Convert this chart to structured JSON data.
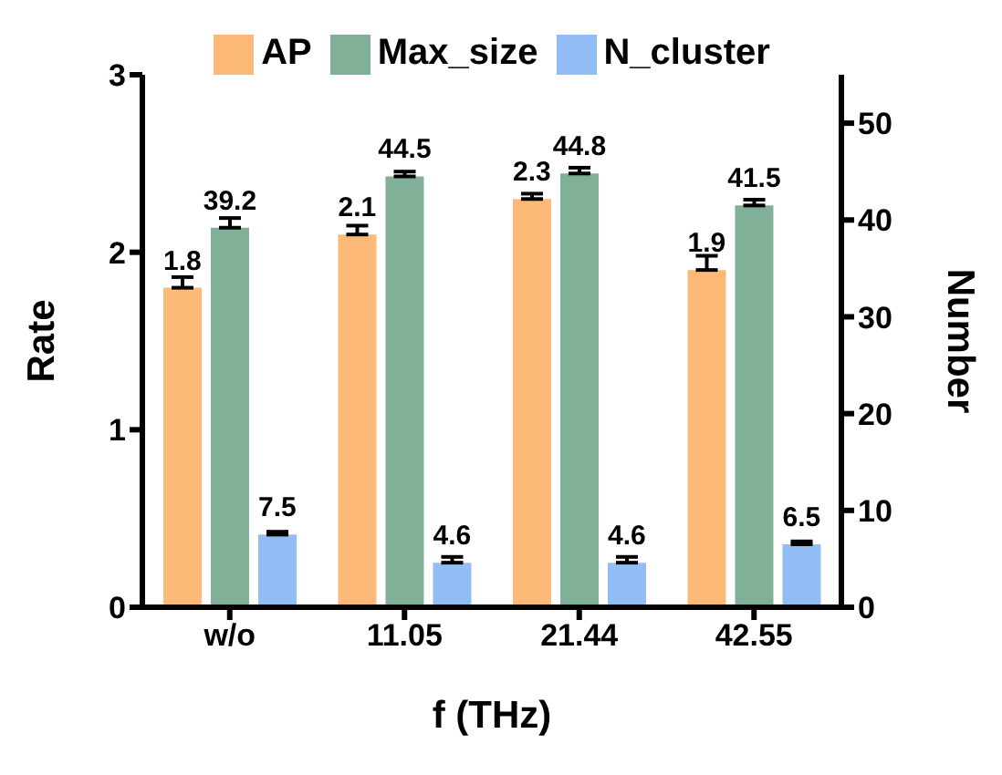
{
  "chart_data": {
    "type": "bar",
    "xlabel": "f (THz)",
    "ylabel": "Rate",
    "y2label": "Number",
    "categories": [
      "w/o",
      "11.05",
      "21.44",
      "42.55"
    ],
    "series": [
      {
        "name": "AP",
        "color": "#fdb978",
        "values": [
          1.8,
          2.1,
          2.3,
          1.9
        ],
        "errors": [
          [
            1.8,
            1.86
          ],
          [
            2.1,
            2.15
          ],
          [
            2.3,
            2.33
          ],
          [
            1.9,
            1.98
          ]
        ]
      },
      {
        "name": "Max_size",
        "color": "#80b198",
        "axis": "y2",
        "values": [
          39.2,
          44.5,
          44.8,
          41.5
        ],
        "errors": [
          [
            39.2,
            40.2
          ],
          [
            44.5,
            45.0
          ],
          [
            44.8,
            45.4
          ],
          [
            41.5,
            42.1
          ]
        ]
      },
      {
        "name": "N_cluster",
        "color": "#92bef5",
        "axis": "y2",
        "values": [
          7.5,
          4.6,
          4.6,
          6.5
        ],
        "errors": [
          [
            7.5,
            7.8
          ],
          [
            4.6,
            5.2
          ],
          [
            4.6,
            5.2
          ],
          [
            6.5,
            6.8
          ]
        ]
      }
    ],
    "ylim": [
      0,
      3
    ],
    "yticks": [
      0,
      1,
      2,
      3
    ],
    "y2lim": [
      0,
      55
    ],
    "y2ticks": [
      0,
      10,
      20,
      30,
      40,
      50
    ],
    "data_labels": true,
    "legend": "top",
    "grid": false
  }
}
